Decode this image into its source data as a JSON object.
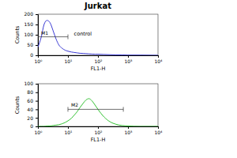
{
  "chart_data": [
    {
      "type": "line",
      "title": "Jurkat",
      "log": "x",
      "color": "#3b3bd4",
      "x_label": "FL1-H",
      "y_label": "Counts",
      "x": [
        1,
        1.3,
        1.6,
        2,
        2.5,
        3.2,
        4,
        5,
        6.3,
        8,
        10,
        13,
        16,
        20,
        25,
        32,
        40,
        50,
        63,
        80,
        100,
        160,
        250,
        400,
        630,
        1000,
        2500,
        10000
      ],
      "values": [
        40,
        90,
        150,
        170,
        160,
        120,
        80,
        50,
        35,
        25,
        20,
        16,
        14,
        12,
        10,
        9,
        8,
        7,
        6,
        5,
        5,
        4,
        3,
        2,
        2,
        1,
        1,
        0
      ],
      "xlim": [
        1,
        10000
      ],
      "xticks": [
        {
          "value": 1,
          "label": "10⁰"
        },
        {
          "value": 10,
          "label": "10¹"
        },
        {
          "value": 100,
          "label": "10²"
        },
        {
          "value": 1000,
          "label": "10³"
        },
        {
          "value": 10000,
          "label": "10⁴"
        }
      ],
      "ylim": [
        0,
        200
      ],
      "yticks": [
        0,
        50,
        100,
        150,
        200
      ],
      "gates": [
        {
          "label": "M1",
          "range": [
            1,
            10
          ]
        }
      ],
      "annotations": [
        {
          "text": "control"
        }
      ]
    },
    {
      "type": "line",
      "log": "x",
      "color": "#33c233",
      "x_label": "FL1-H",
      "y_label": "Counts",
      "x": [
        1,
        1.3,
        1.6,
        2,
        2.5,
        3.2,
        4,
        5,
        6.3,
        8,
        10,
        13,
        16,
        20,
        25,
        32,
        40,
        50,
        63,
        80,
        100,
        160,
        250,
        400,
        630,
        1000,
        2500,
        10000
      ],
      "values": [
        0,
        0,
        0,
        1,
        1,
        2,
        3,
        4,
        6,
        9,
        13,
        19,
        26,
        34,
        44,
        54,
        62,
        65,
        60,
        50,
        40,
        22,
        11,
        5,
        2,
        1,
        0,
        0
      ],
      "xlim": [
        1,
        10000
      ],
      "xticks": [
        {
          "value": 1,
          "label": "10⁰"
        },
        {
          "value": 10,
          "label": "10¹"
        },
        {
          "value": 100,
          "label": "10²"
        },
        {
          "value": 1000,
          "label": "10³"
        },
        {
          "value": 10000,
          "label": "10⁴"
        }
      ],
      "ylim": [
        0,
        100
      ],
      "yticks": [
        0,
        20,
        40,
        60,
        80,
        100
      ],
      "gates": [
        {
          "label": "M2",
          "range": [
            10,
            700
          ]
        }
      ]
    }
  ]
}
